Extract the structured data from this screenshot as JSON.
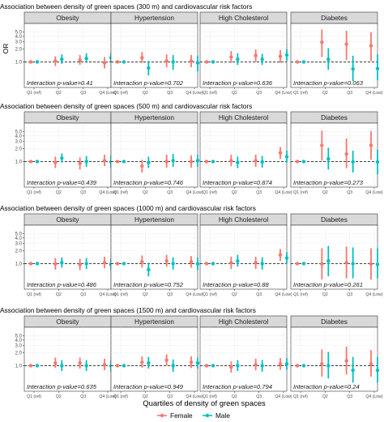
{
  "chart_data": {
    "type": "scatter",
    "xlabel": "Quartiles of density of green spaces",
    "ylabel": "OR",
    "ylim": [
      0.25,
      8
    ],
    "yscale": "log",
    "yticks": [
      1.0,
      2.0,
      3.0,
      4.0,
      5.0
    ],
    "ytick_labels": [
      "1.0",
      "2.0",
      "3.0",
      "4.0",
      "5.0"
    ],
    "reference_line": 1.0,
    "categories": [
      "Q1 (ref)",
      "Q2",
      "Q3",
      "Q4 (Low)"
    ],
    "panels": [
      "Obesity",
      "Hypertension",
      "High Cholesterol",
      "Diabetes"
    ],
    "legend": {
      "position": "bottom",
      "entries": [
        {
          "name": "Female",
          "color": "#F8766D"
        },
        {
          "name": "Male",
          "color": "#00BFC4"
        }
      ]
    },
    "rows": [
      {
        "title": "Association between density of green spaces (300 m) and cardiovascular risk factors",
        "facets": [
          {
            "panel": "Obesity",
            "interaction": "Interaction p-value=0.41",
            "female": {
              "or": [
                1,
                1.05,
                1.1,
                0.95
              ],
              "lo": [
                1,
                0.8,
                0.85,
                0.7
              ],
              "hi": [
                1,
                1.35,
                1.45,
                1.3
              ]
            },
            "male": {
              "or": [
                1,
                1.15,
                1.2,
                1.25
              ],
              "lo": [
                1,
                0.9,
                0.95,
                1.0
              ],
              "hi": [
                1,
                1.5,
                1.6,
                1.6
              ]
            }
          },
          {
            "panel": "Hypertension",
            "interaction": "Interaction p-value=0.702",
            "female": {
              "or": [
                1,
                1.25,
                1.05,
                1.05
              ],
              "lo": [
                1,
                0.95,
                0.75,
                0.75
              ],
              "hi": [
                1,
                1.7,
                1.5,
                1.45
              ]
            },
            "male": {
              "or": [
                1,
                0.72,
                1.0,
                0.95
              ],
              "lo": [
                1,
                0.48,
                0.65,
                0.6
              ],
              "hi": [
                1,
                1.05,
                1.45,
                1.4
              ]
            }
          },
          {
            "panel": "High Cholesterol",
            "interaction": "Interaction p-value=0.636",
            "female": {
              "or": [
                1,
                1.3,
                1.4,
                1.35
              ],
              "lo": [
                1,
                0.95,
                1.0,
                0.95
              ],
              "hi": [
                1,
                1.8,
                1.95,
                1.9
              ]
            },
            "male": {
              "or": [
                1,
                1.15,
                1.15,
                1.45
              ],
              "lo": [
                1,
                0.85,
                0.85,
                1.05
              ],
              "hi": [
                1,
                1.6,
                1.55,
                2.0
              ]
            }
          },
          {
            "panel": "Diabetes",
            "interaction": "Interaction p-value=0.063",
            "female": {
              "or": [
                1,
                2.9,
                2.6,
                2.4
              ],
              "lo": [
                1,
                1.3,
                1.1,
                1.05
              ],
              "hi": [
                1,
                5.8,
                5.4,
                5.0
              ]
            },
            "male": {
              "or": [
                1,
                1.15,
                0.68,
                0.7
              ],
              "lo": [
                1,
                0.65,
                0.35,
                0.37
              ],
              "hi": [
                1,
                2.1,
                1.4,
                1.5
              ]
            }
          }
        ]
      },
      {
        "title": "Association between density of green spaces (500 m) and cardiovascular risk factors",
        "facets": [
          {
            "panel": "Obesity",
            "interaction": "Interaction p-value=0.439",
            "female": {
              "or": [
                1,
                0.95,
                0.9,
                1.05
              ],
              "lo": [
                1,
                0.7,
                0.65,
                0.78
              ],
              "hi": [
                1,
                1.3,
                1.25,
                1.45
              ]
            },
            "male": {
              "or": [
                1,
                1.2,
                1.0,
                0.98
              ],
              "lo": [
                1,
                0.95,
                0.75,
                0.7
              ],
              "hi": [
                1,
                1.55,
                1.35,
                1.4
              ]
            }
          },
          {
            "panel": "Hypertension",
            "interaction": "Interaction p-value=0.746",
            "female": {
              "or": [
                1,
                0.78,
                1.0,
                1.0
              ],
              "lo": [
                1,
                0.55,
                0.72,
                0.72
              ],
              "hi": [
                1,
                1.1,
                1.45,
                1.4
              ]
            },
            "male": {
              "or": [
                1,
                0.95,
                1.05,
                1.05
              ],
              "lo": [
                1,
                0.7,
                0.75,
                0.75
              ],
              "hi": [
                1,
                1.3,
                1.5,
                1.45
              ]
            }
          },
          {
            "panel": "High Cholesterol",
            "interaction": "Interaction p-value=0.874",
            "female": {
              "or": [
                1,
                1.05,
                1.05,
                1.6
              ],
              "lo": [
                1,
                0.78,
                0.75,
                1.15
              ],
              "hi": [
                1,
                1.45,
                1.45,
                2.2
              ]
            },
            "male": {
              "or": [
                1,
                0.95,
                0.98,
                1.3
              ],
              "lo": [
                1,
                0.7,
                0.72,
                0.95
              ],
              "hi": [
                1,
                1.3,
                1.35,
                1.8
              ]
            }
          },
          {
            "panel": "Diabetes",
            "interaction": "Interaction p-value=0.273",
            "female": {
              "or": [
                1,
                2.4,
                1.5,
                2.4
              ],
              "lo": [
                1,
                1.05,
                0.7,
                1.1
              ],
              "hi": [
                1,
                5.3,
                3.5,
                5.2
              ]
            },
            "male": {
              "or": [
                1,
                1.15,
                0.98,
                0.98
              ],
              "lo": [
                1,
                0.65,
                0.55,
                0.5
              ],
              "hi": [
                1,
                2.1,
                1.8,
                1.9
              ]
            }
          }
        ]
      },
      {
        "title": "Association between density of green spaces (1000 m) and cardiovascular risk factors",
        "facets": [
          {
            "panel": "Obesity",
            "interaction": "Interaction p-value=0.486",
            "female": {
              "or": [
                1,
                0.98,
                0.95,
                1.05
              ],
              "lo": [
                1,
                0.72,
                0.7,
                0.78
              ],
              "hi": [
                1,
                1.35,
                1.3,
                1.45
              ]
            },
            "male": {
              "or": [
                1,
                1.05,
                1.0,
                0.95
              ],
              "lo": [
                1,
                0.8,
                0.75,
                0.7
              ],
              "hi": [
                1,
                1.4,
                1.35,
                1.3
              ]
            }
          },
          {
            "panel": "Hypertension",
            "interaction": "Interaction p-value=0.752",
            "female": {
              "or": [
                1,
                1.1,
                1.15,
                1.1
              ],
              "lo": [
                1,
                0.8,
                0.85,
                0.8
              ],
              "hi": [
                1,
                1.55,
                1.6,
                1.5
              ]
            },
            "male": {
              "or": [
                1,
                0.72,
                1.0,
                0.98
              ],
              "lo": [
                1,
                0.5,
                0.72,
                0.7
              ],
              "hi": [
                1,
                1.05,
                1.4,
                1.4
              ]
            }
          },
          {
            "panel": "High Cholesterol",
            "interaction": "Interaction p-value=0.88",
            "female": {
              "or": [
                1,
                1.05,
                1.05,
                1.6
              ],
              "lo": [
                1,
                0.75,
                0.75,
                1.15
              ],
              "hi": [
                1,
                1.45,
                1.45,
                2.2
              ]
            },
            "male": {
              "or": [
                1,
                1.15,
                1.0,
                1.35
              ],
              "lo": [
                1,
                0.85,
                0.72,
                1.0
              ],
              "hi": [
                1,
                1.6,
                1.4,
                1.85
              ]
            }
          },
          {
            "panel": "Diabetes",
            "interaction": "Interaction p-value=0.261",
            "female": {
              "or": [
                1,
                0.98,
                1.05,
                0.98
              ],
              "lo": [
                1,
                0.42,
                0.45,
                0.42
              ],
              "hi": [
                1,
                2.3,
                2.5,
                2.3
              ]
            },
            "male": {
              "or": [
                1,
                1.15,
                1.0,
                0.95
              ],
              "lo": [
                1,
                0.5,
                0.45,
                0.45
              ],
              "hi": [
                1,
                2.6,
                2.4,
                2.3
              ]
            }
          }
        ]
      },
      {
        "title": "Association between density of green spaces (1500 m) and cardiovascular risk factors",
        "facets": [
          {
            "panel": "Obesity",
            "interaction": "Interaction p-value=0.635",
            "female": {
              "or": [
                1,
                1.15,
                1.15,
                1.05
              ],
              "lo": [
                1,
                0.88,
                0.85,
                0.78
              ],
              "hi": [
                1,
                1.55,
                1.55,
                1.45
              ]
            },
            "male": {
              "or": [
                1,
                1.0,
                1.0,
                0.98
              ],
              "lo": [
                1,
                0.75,
                0.75,
                0.72
              ],
              "hi": [
                1,
                1.35,
                1.35,
                1.35
              ]
            }
          },
          {
            "panel": "Hypertension",
            "interaction": "Interaction p-value=0.949",
            "female": {
              "or": [
                1,
                1.2,
                1.35,
                1.2
              ],
              "lo": [
                1,
                0.9,
                1.0,
                0.88
              ],
              "hi": [
                1,
                1.65,
                1.85,
                1.65
              ]
            },
            "male": {
              "or": [
                1,
                1.15,
                1.0,
                1.15
              ],
              "lo": [
                1,
                0.85,
                0.72,
                0.85
              ],
              "hi": [
                1,
                1.6,
                1.4,
                1.55
              ]
            }
          },
          {
            "panel": "High Cholesterol",
            "interaction": "Interaction p-value=0.794",
            "female": {
              "or": [
                1,
                0.92,
                1.05,
                1.1
              ],
              "lo": [
                1,
                0.68,
                0.78,
                0.8
              ],
              "hi": [
                1,
                1.25,
                1.45,
                1.5
              ]
            },
            "male": {
              "or": [
                1,
                1.0,
                1.0,
                1.1
              ],
              "lo": [
                1,
                0.75,
                0.72,
                0.8
              ],
              "hi": [
                1,
                1.35,
                1.35,
                1.5
              ]
            }
          },
          {
            "panel": "Diabetes",
            "interaction": "Interaction p-value=0.24",
            "female": {
              "or": [
                1,
                1.1,
                1.3,
                1.1
              ],
              "lo": [
                1,
                0.55,
                0.62,
                0.55
              ],
              "hi": [
                1,
                2.4,
                2.8,
                2.3
              ]
            },
            "male": {
              "or": [
                1,
                1.0,
                0.78,
                0.78
              ],
              "lo": [
                1,
                0.5,
                0.4,
                0.4
              ],
              "hi": [
                1,
                2.1,
                1.6,
                1.6
              ]
            }
          }
        ]
      }
    ]
  }
}
